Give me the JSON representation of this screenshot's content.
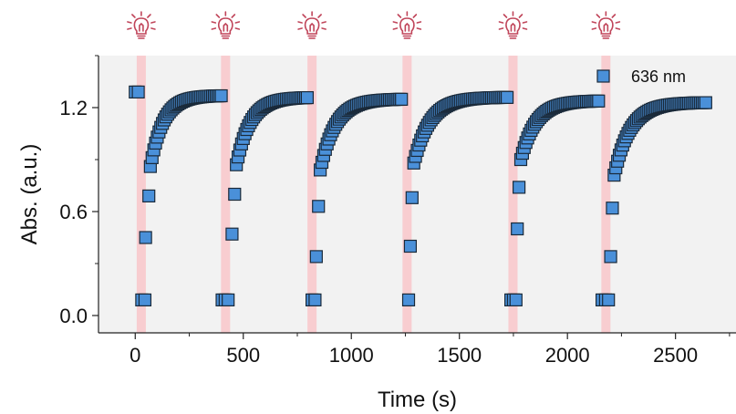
{
  "chart_data": {
    "type": "scatter",
    "xlabel": "Time (s)",
    "ylabel": "Abs. (a.u.)",
    "xlim": [
      -170,
      2780
    ],
    "ylim": [
      -0.1,
      1.5
    ],
    "x_ticks": [
      0,
      500,
      1000,
      1500,
      2000,
      2500
    ],
    "x_tick_labels": [
      "0",
      "500",
      "1000",
      "1500",
      "2000",
      "2500"
    ],
    "y_ticks": [
      0.0,
      0.6,
      1.2
    ],
    "y_tick_labels": [
      "0.0",
      "0.6",
      "1.2"
    ],
    "grid": false,
    "legend_position": "top-right",
    "plot_background": "#f2f2f2",
    "marker_color": "#4a90d9",
    "marker_edge": "#1a2a3a",
    "irradiation_band_color": "#f8cdd0",
    "bulb_icon_color": "#c0455a",
    "irradiation_times": [
      28,
      418,
      818,
      1258,
      1748,
      2178
    ],
    "series": [
      {
        "name": "636 nm",
        "cycles": [
          {
            "start": 0,
            "on_times": [
              30,
              45
            ],
            "fast": [
              [
                48,
                0.45
              ],
              [
                63,
                0.69
              ]
            ],
            "t0": 70,
            "y0": 0.86,
            "t_end": 402,
            "plateau": 1.27,
            "tau": 60,
            "pre": [
              [
                0,
                1.29
              ],
              [
                14,
                1.29
              ]
            ]
          },
          {
            "start": 402,
            "on_times": [
              402,
              416,
              430
            ],
            "fast": [
              [
                448,
                0.47
              ],
              [
                460,
                0.7
              ]
            ],
            "t0": 468,
            "y0": 0.87,
            "t_end": 800,
            "plateau": 1.26,
            "tau": 65,
            "pre": []
          },
          {
            "start": 800,
            "on_times": [
              818,
              832
            ],
            "fast": [
              [
                838,
                0.34
              ],
              [
                848,
                0.63
              ]
            ],
            "t0": 856,
            "y0": 0.84,
            "t_end": 1235,
            "plateau": 1.25,
            "tau": 70,
            "pre": []
          },
          {
            "start": 1235,
            "on_times": [
              1265
            ],
            "fast": [
              [
                1273,
                0.4
              ],
              [
                1281,
                0.68
              ]
            ],
            "t0": 1289,
            "y0": 0.88,
            "t_end": 1728,
            "plateau": 1.26,
            "tau": 75,
            "pre": []
          },
          {
            "start": 1728,
            "on_times": [
              1738,
              1750,
              1762
            ],
            "fast": [
              [
                1768,
                0.5
              ],
              [
                1776,
                0.74
              ]
            ],
            "t0": 1784,
            "y0": 0.9,
            "t_end": 2150,
            "plateau": 1.24,
            "tau": 70,
            "pre": []
          },
          {
            "start": 2150,
            "on_times": [
              2160,
              2176,
              2190
            ],
            "fast": [
              [
                2200,
                0.34
              ],
              [
                2208,
                0.62
              ]
            ],
            "t0": 2216,
            "y0": 0.81,
            "t_end": 2640,
            "plateau": 1.23,
            "tau": 75,
            "pre": []
          }
        ],
        "off_value": 0.09
      }
    ]
  }
}
